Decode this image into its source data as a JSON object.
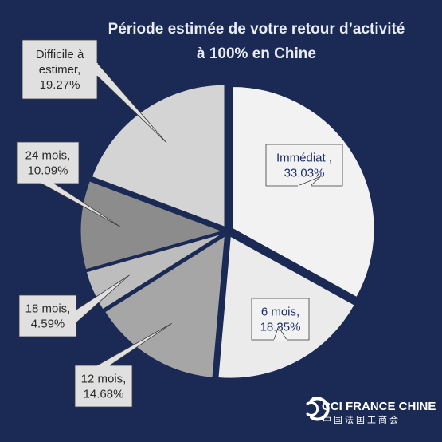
{
  "chart_data": {
    "type": "pie",
    "title_lines": [
      "Période estimée de votre retour d’activité",
      "à 100% en Chine"
    ],
    "slices": [
      {
        "label_lines": [
          "Immédiat ,",
          "33.03%"
        ],
        "value": 33.03,
        "color": "#f2f2f2",
        "text": "light"
      },
      {
        "label_lines": [
          "6 mois,",
          "18.35%"
        ],
        "value": 18.35,
        "color": "#ebebeb",
        "text": "light"
      },
      {
        "label_lines": [
          "12 mois,",
          "14.68%"
        ],
        "value": 14.68,
        "color": "#a6a6a6",
        "text": "dark"
      },
      {
        "label_lines": [
          "18 mois,",
          "4.59%"
        ],
        "value": 4.59,
        "color": "#bdbdbd",
        "text": "dark"
      },
      {
        "label_lines": [
          "24 mois,",
          "10.09%"
        ],
        "value": 10.09,
        "color": "#8c8c8c",
        "text": "dark"
      },
      {
        "label_lines": [
          "Difficile à",
          "estimer,",
          "19.27%"
        ],
        "value": 19.27,
        "color": "#d4d4d4",
        "text": "dark"
      }
    ]
  },
  "logo": {
    "main": "CCI FRANCE CHINE",
    "sub": "中国法国工商会",
    "icon": "cci-logo-icon"
  }
}
